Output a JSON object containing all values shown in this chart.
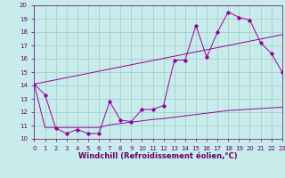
{
  "xlabel": "Windchill (Refroidissement éolien,°C)",
  "xlim": [
    0,
    23
  ],
  "ylim": [
    10,
    20
  ],
  "xticks": [
    0,
    1,
    2,
    3,
    4,
    5,
    6,
    7,
    8,
    9,
    10,
    11,
    12,
    13,
    14,
    15,
    16,
    17,
    18,
    19,
    20,
    21,
    22,
    23
  ],
  "yticks": [
    10,
    11,
    12,
    13,
    14,
    15,
    16,
    17,
    18,
    19,
    20
  ],
  "background_color": "#c8ecec",
  "grid_color": "#a0c8c8",
  "line_color": "#990099",
  "line1_x": [
    0,
    1,
    2,
    3,
    4,
    5,
    6,
    7,
    8,
    9,
    10,
    11,
    12,
    13,
    14,
    15,
    16,
    17,
    18,
    19,
    20,
    21,
    22,
    23
  ],
  "line1_y": [
    14.1,
    13.3,
    10.8,
    10.4,
    10.7,
    10.4,
    10.4,
    12.8,
    11.4,
    11.3,
    12.2,
    12.2,
    12.5,
    15.9,
    15.9,
    18.5,
    16.1,
    18.0,
    19.5,
    19.1,
    18.9,
    17.2,
    16.4,
    15.0
  ],
  "line2_x": [
    0,
    23
  ],
  "line2_y": [
    14.1,
    17.8
  ],
  "line3_x": [
    0,
    1,
    2,
    3,
    4,
    5,
    6,
    7,
    8,
    9,
    10,
    11,
    12,
    13,
    14,
    15,
    16,
    17,
    18,
    19,
    20,
    21,
    22,
    23
  ],
  "line3_y": [
    14.1,
    10.85,
    10.85,
    10.85,
    10.85,
    10.85,
    10.85,
    11.05,
    11.15,
    11.25,
    11.35,
    11.45,
    11.52,
    11.62,
    11.72,
    11.82,
    11.92,
    12.02,
    12.12,
    12.17,
    12.22,
    12.27,
    12.32,
    12.37
  ],
  "font_color": "#660066",
  "tick_fontsize": 5.0,
  "label_fontsize": 6.0
}
